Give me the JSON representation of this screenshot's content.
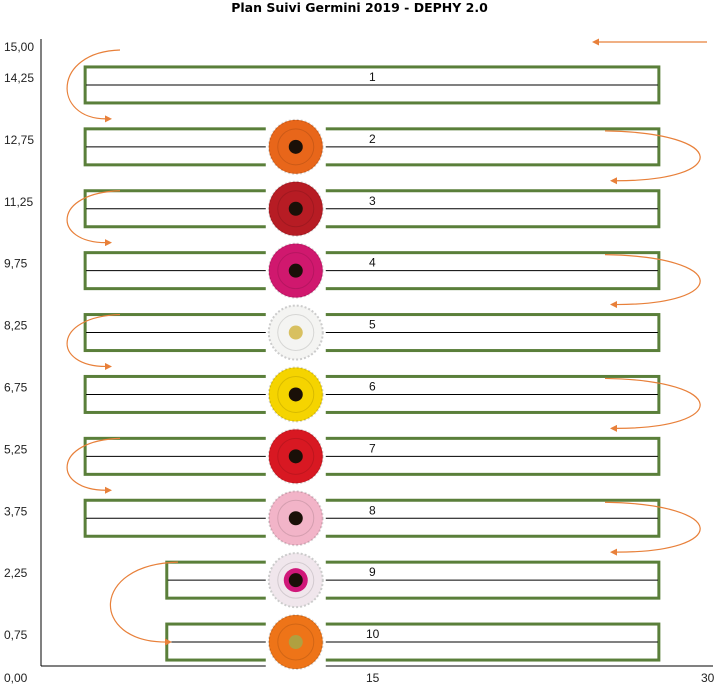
{
  "title": "Plan Suivi Germini 2019 - DEPHY 2.0",
  "chart_data": {
    "type": "diagram",
    "x_axis": {
      "min": 0,
      "max": 30,
      "tick_labels": [
        "0,00",
        "15",
        "30"
      ]
    },
    "y_axis": {
      "min": 0,
      "max": 15,
      "tick_labels": [
        "15,00",
        "14,25",
        "12,75",
        "11,25",
        "9,75",
        "8,25",
        "6,75",
        "5,25",
        "3,75",
        "2,25",
        "0,75"
      ]
    },
    "rows": [
      {
        "label": "1",
        "y": 14.25,
        "x_start": 2,
        "x_end": 28,
        "flower": null
      },
      {
        "label": "2",
        "y": 12.75,
        "x_start": 2,
        "x_end": 28,
        "flower": "#e8661a"
      },
      {
        "label": "3",
        "y": 11.25,
        "x_start": 2,
        "x_end": 28,
        "flower": "#b71c24"
      },
      {
        "label": "4",
        "y": 9.75,
        "x_start": 2,
        "x_end": 28,
        "flower": "#d0186e"
      },
      {
        "label": "5",
        "y": 8.25,
        "x_start": 2,
        "x_end": 28,
        "flower": "#f4f4f2"
      },
      {
        "label": "6",
        "y": 6.75,
        "x_start": 2,
        "x_end": 28,
        "flower": "#f5d400"
      },
      {
        "label": "7",
        "y": 5.25,
        "x_start": 2,
        "x_end": 28,
        "flower": "#d81822"
      },
      {
        "label": "8",
        "y": 3.75,
        "x_start": 2,
        "x_end": 28,
        "flower": "#f2b4c8"
      },
      {
        "label": "9",
        "y": 2.25,
        "x_start": 5.7,
        "x_end": 28,
        "flower": "#f0e6ec"
      },
      {
        "label": "10",
        "y": 0.75,
        "x_start": 5.7,
        "x_end": 28,
        "flower": "#ee7418"
      }
    ],
    "flower_x": 11.5,
    "colors": {
      "bed_border": "#5a7f3a",
      "arrow": "#e8803a",
      "axis": "#000000"
    }
  }
}
